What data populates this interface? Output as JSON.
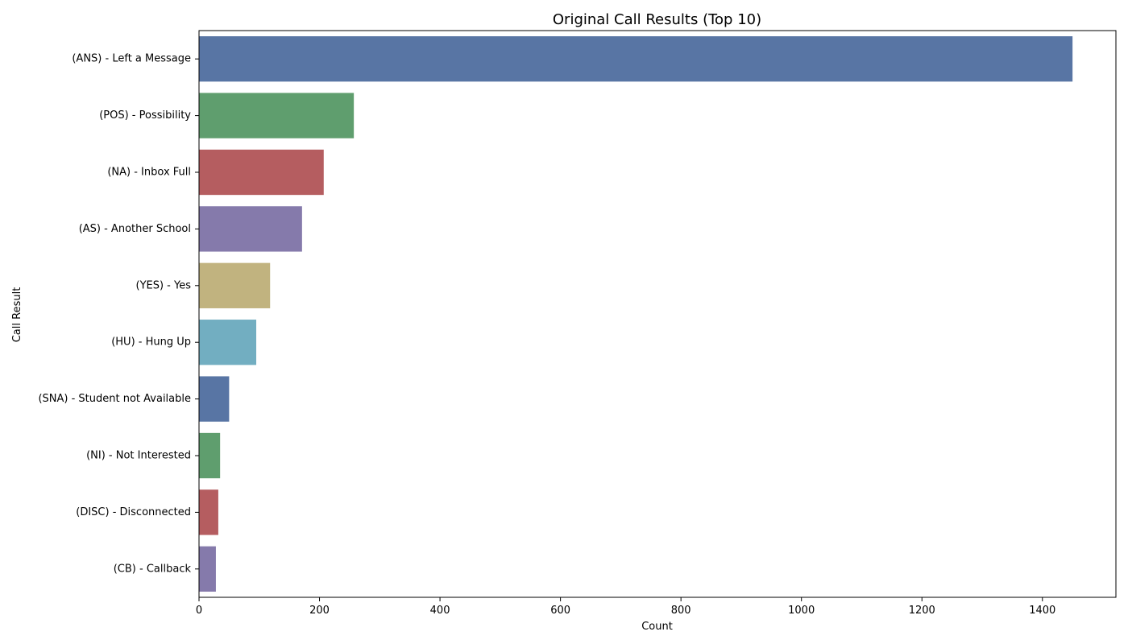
{
  "chart_data": {
    "type": "bar",
    "orientation": "horizontal",
    "title": "Original Call Results (Top 10)",
    "xlabel": "Count",
    "ylabel": "Call Result",
    "categories": [
      "(ANS) - Left a Message",
      "(POS) - Possibility",
      "(NA) - Inbox Full",
      "(AS) - Another School",
      "(YES) - Yes",
      "(HU) - Hung Up",
      "(SNA) - Student not Available",
      "(NI) - Not Interested",
      "(DISC) - Disconnected",
      "(CB) - Callback"
    ],
    "values": [
      1450,
      257,
      207,
      171,
      118,
      95,
      50,
      35,
      32,
      28
    ],
    "colors": [
      "#5875a4",
      "#5f9e6e",
      "#b55d60",
      "#857aab",
      "#c1b37f",
      "#72aec1",
      "#5875a4",
      "#5f9e6e",
      "#b55d60",
      "#857aab"
    ],
    "xlim": [
      0,
      1522
    ],
    "xticks": [
      0,
      200,
      400,
      600,
      800,
      1000,
      1200,
      1400
    ],
    "grid": false,
    "legend": "none"
  }
}
